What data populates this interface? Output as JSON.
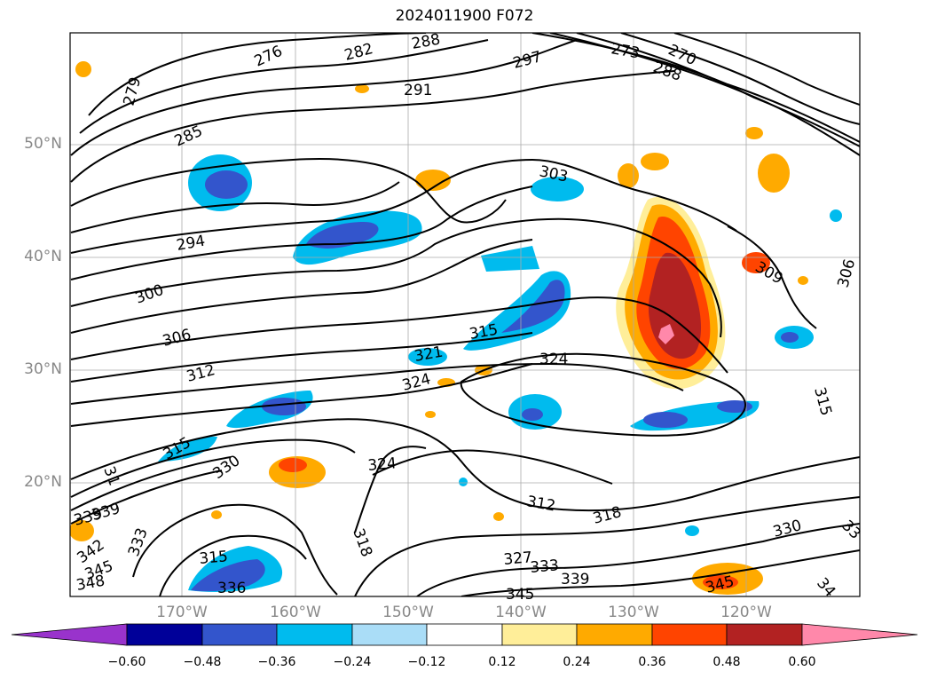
{
  "title": "2024011900 F072",
  "lat_labels": [
    "50°N",
    "40°N",
    "30°N",
    "20°N"
  ],
  "lon_labels": [
    "170°W",
    "160°W",
    "150°W",
    "140°W",
    "130°W",
    "120°W"
  ],
  "colorbar": {
    "ticks": [
      "−0.60",
      "−0.48",
      "−0.36",
      "−0.24",
      "−0.12",
      "0.12",
      "0.24",
      "0.36",
      "0.48",
      "0.60"
    ],
    "colors": [
      "#9933cc",
      "#000099",
      "#3355cc",
      "#00bbee",
      "#aaddf7",
      "#ffffff",
      "#ffee99",
      "#ffaa00",
      "#ff4400",
      "#b22222",
      "#ff88aa"
    ]
  },
  "contour_labels": [
    "276",
    "282",
    "288",
    "273",
    "270",
    "288",
    "279",
    "297",
    "291",
    "285",
    "303",
    "294",
    "300",
    "309",
    "306",
    "306",
    "315",
    "312",
    "321",
    "324",
    "324",
    "315",
    "324",
    "330",
    "312",
    "318",
    "339",
    "339",
    "342",
    "333",
    "345",
    "348",
    "315",
    "336",
    "318",
    "327",
    "333",
    "339",
    "345",
    "345",
    "330",
    "33",
    "34",
    "315",
    "31"
  ]
}
